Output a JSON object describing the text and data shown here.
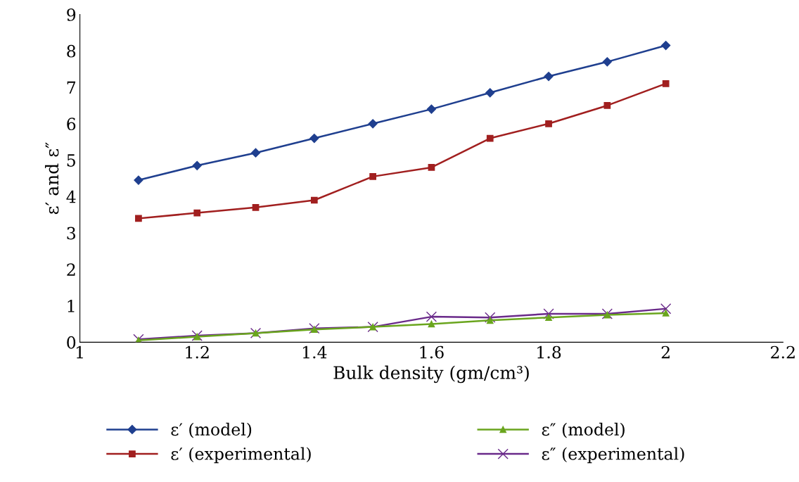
{
  "chart_data": {
    "type": "line",
    "xlabel": "Bulk density (gm/cm³)",
    "ylabel": "ε′ and ε″",
    "x": [
      1.1,
      1.2,
      1.3,
      1.4,
      1.5,
      1.6,
      1.7,
      1.8,
      1.9,
      2.0
    ],
    "series": [
      {
        "name": "ε′ (model)",
        "color": "#1f3f8f",
        "marker": "diamond",
        "values": [
          4.45,
          4.85,
          5.2,
          5.6,
          6.0,
          6.4,
          6.85,
          7.3,
          7.7,
          8.15
        ]
      },
      {
        "name": "ε′ (experimental)",
        "color": "#a11f1f",
        "marker": "square",
        "values": [
          3.4,
          3.55,
          3.7,
          3.9,
          4.55,
          4.8,
          5.6,
          6.0,
          6.5,
          7.1
        ]
      },
      {
        "name": "ε″ (model)",
        "color": "#6aa51e",
        "marker": "triangle",
        "values": [
          0.05,
          0.15,
          0.25,
          0.35,
          0.42,
          0.5,
          0.6,
          0.68,
          0.75,
          0.8
        ]
      },
      {
        "name": "ε″ (experimental)",
        "color": "#6a2a8a",
        "marker": "cross",
        "values": [
          0.08,
          0.18,
          0.25,
          0.38,
          0.42,
          0.7,
          0.68,
          0.78,
          0.78,
          0.92
        ]
      }
    ],
    "xlim": [
      1,
      2.2
    ],
    "xticks": [
      1,
      1.2,
      1.4,
      1.6,
      1.8,
      2,
      2.2
    ],
    "ylim": [
      0,
      9
    ],
    "yticks": [
      0,
      1,
      2,
      3,
      4,
      5,
      6,
      7,
      8,
      9
    ],
    "grid": false,
    "legend": "bottom",
    "line_style": "solid"
  }
}
